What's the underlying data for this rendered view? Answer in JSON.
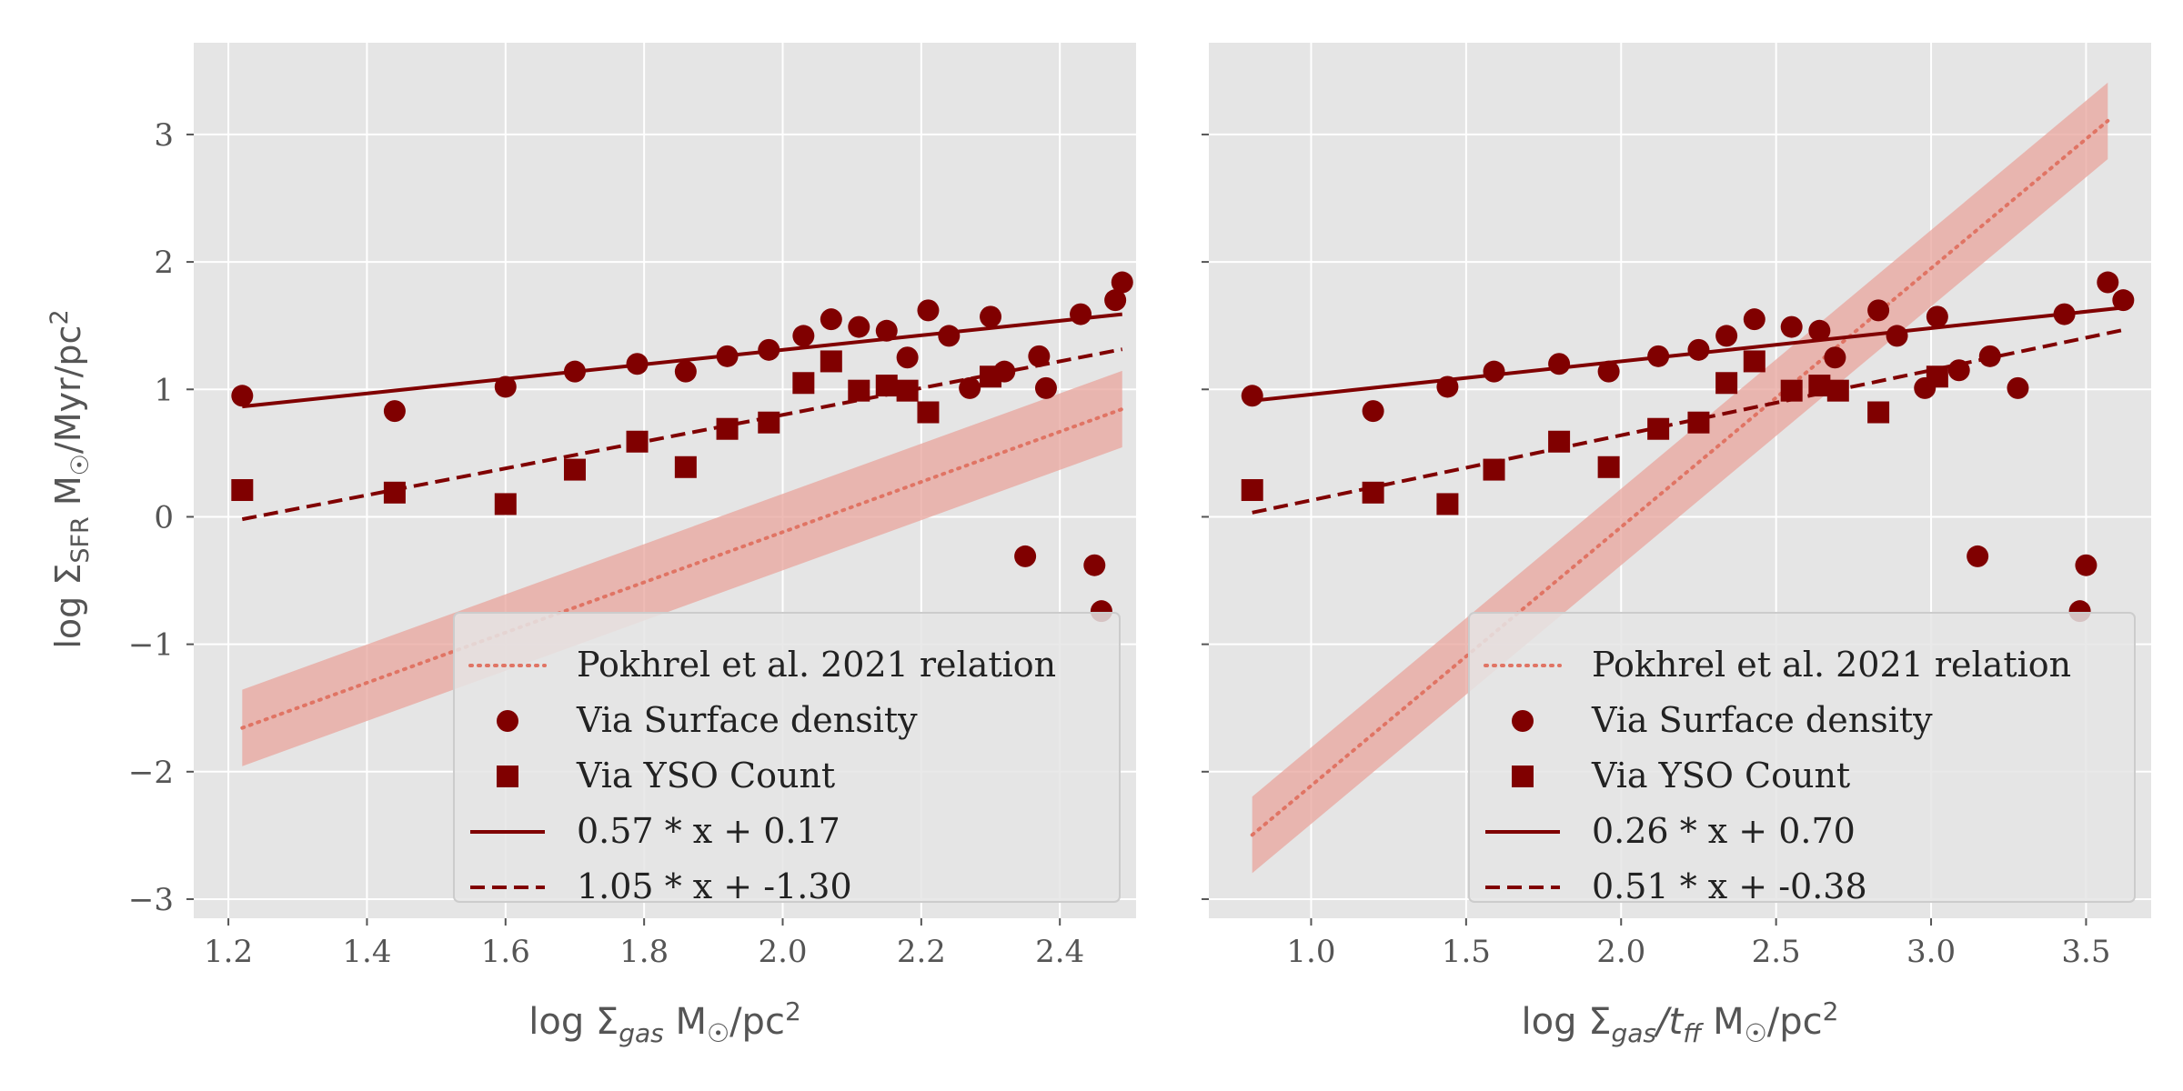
{
  "colors": {
    "panel_bg": "#e5e5e5",
    "grid": "#ffffff",
    "point": "#800000",
    "fit_line": "#800000",
    "relation_line": "#e07464",
    "relation_band": "#e8a49c",
    "tick_text": "#555555",
    "label_text": "#555555"
  },
  "figure": {
    "shared_ylabel": {
      "prefix": "log Σ",
      "sub": "SFR",
      "unit": " M",
      "sun": "☉",
      "rest": "/Myr/pc",
      "sup": "2"
    }
  },
  "chart_data": [
    {
      "type": "scatter",
      "xlim": [
        1.15,
        2.51
      ],
      "ylim": [
        -3.15,
        3.72
      ],
      "xticks": [
        1.2,
        1.4,
        1.6,
        1.8,
        2.0,
        2.2,
        2.4
      ],
      "xtick_labels": [
        "1.2",
        "1.4",
        "1.6",
        "1.8",
        "2.0",
        "2.2",
        "2.4"
      ],
      "yticks": [
        -3,
        -2,
        -1,
        0,
        1,
        2,
        3
      ],
      "ytick_labels": [
        "−3",
        "−2",
        "−1",
        "0",
        "1",
        "2",
        "3"
      ],
      "xlabel": {
        "prefix": "log Σ",
        "sub": "gas",
        "unit": " M",
        "sun": "☉",
        "rest": "/pc",
        "sup": "2"
      },
      "grid": true,
      "legend": {
        "placement": "lower-right",
        "entries": [
          {
            "label": "Pokhrel et al. 2021 relation",
            "marker": "dotted"
          },
          {
            "label": "Via Surface density",
            "marker": "circle"
          },
          {
            "label": "Via YSO Count",
            "marker": "square"
          },
          {
            "label": "0.57 * x + 0.17",
            "marker": "solid"
          },
          {
            "label": "1.05 * x + -1.30",
            "marker": "dashed"
          }
        ]
      },
      "series": [
        {
          "name": "Via Surface density",
          "marker": "circle",
          "x": [
            1.22,
            1.44,
            1.6,
            1.7,
            1.79,
            1.86,
            1.92,
            1.98,
            2.03,
            2.07,
            2.11,
            2.15,
            2.18,
            2.21,
            2.24,
            2.27,
            2.3,
            2.32,
            2.35,
            2.37,
            2.38,
            2.43,
            2.45,
            2.46,
            2.48,
            2.49
          ],
          "y": [
            0.95,
            0.83,
            1.02,
            1.14,
            1.2,
            1.14,
            1.26,
            1.31,
            1.42,
            1.55,
            1.49,
            1.46,
            1.25,
            1.62,
            1.42,
            1.01,
            1.57,
            1.14,
            -0.31,
            1.26,
            1.01,
            1.59,
            -0.38,
            -0.74,
            1.7,
            1.84
          ]
        },
        {
          "name": "Via YSO Count",
          "marker": "square",
          "x": [
            1.22,
            1.44,
            1.6,
            1.7,
            1.79,
            1.86,
            1.92,
            1.98,
            2.03,
            2.07,
            2.11,
            2.15,
            2.18,
            2.21,
            2.3
          ],
          "y": [
            0.21,
            0.19,
            0.1,
            0.37,
            0.59,
            0.39,
            0.69,
            0.74,
            1.05,
            1.22,
            0.99,
            1.03,
            0.99,
            0.82,
            1.1
          ]
        }
      ],
      "lines": [
        {
          "name": "0.57 * x + 0.17",
          "style": "solid",
          "slope": 0.57,
          "intercept": 0.17,
          "x_range": [
            1.22,
            2.49
          ]
        },
        {
          "name": "1.05 * x + -1.30",
          "style": "dashed",
          "slope": 1.05,
          "intercept": -1.3,
          "x_range": [
            1.22,
            2.49
          ]
        }
      ],
      "relation": {
        "name": "Pokhrel et al. 2021 relation",
        "style": "dotted",
        "slope": 1.97,
        "intercept": -4.06,
        "band_halfwidth": 0.3,
        "x_range": [
          1.22,
          2.49
        ]
      }
    },
    {
      "type": "scatter",
      "xlim": [
        0.67,
        3.71
      ],
      "ylim": [
        -3.15,
        3.72
      ],
      "xticks": [
        1.0,
        1.5,
        2.0,
        2.5,
        3.0,
        3.5
      ],
      "xtick_labels": [
        "1.0",
        "1.5",
        "2.0",
        "2.5",
        "3.0",
        "3.5"
      ],
      "yticks": [
        -3,
        -2,
        -1,
        0,
        1,
        2,
        3
      ],
      "ytick_labels": [],
      "xlabel": {
        "prefix": "log Σ",
        "sub": "gas",
        "mid": "/t",
        "sub2": "ff",
        "unit": " M",
        "sun": "☉",
        "rest": "/pc",
        "sup": "2"
      },
      "grid": true,
      "legend": {
        "placement": "lower-right",
        "entries": [
          {
            "label": "Pokhrel et al. 2021 relation",
            "marker": "dotted"
          },
          {
            "label": "Via Surface density",
            "marker": "circle"
          },
          {
            "label": "Via YSO Count",
            "marker": "square"
          },
          {
            "label": "0.26 * x + 0.70",
            "marker": "solid"
          },
          {
            "label": "0.51 * x + -0.38",
            "marker": "dashed"
          }
        ]
      },
      "series": [
        {
          "name": "Via Surface density",
          "marker": "circle",
          "x": [
            0.81,
            1.2,
            1.44,
            1.59,
            1.8,
            1.96,
            2.12,
            2.25,
            2.34,
            2.43,
            2.55,
            2.64,
            2.69,
            2.83,
            2.89,
            2.98,
            3.02,
            3.09,
            3.15,
            3.19,
            3.28,
            3.43,
            3.48,
            3.5,
            3.57,
            3.62
          ],
          "y": [
            0.95,
            0.83,
            1.02,
            1.14,
            1.2,
            1.14,
            1.26,
            1.31,
            1.42,
            1.55,
            1.49,
            1.46,
            1.25,
            1.62,
            1.42,
            1.01,
            1.57,
            1.15,
            -0.31,
            1.26,
            1.01,
            1.59,
            -0.74,
            -0.38,
            1.84,
            1.7
          ]
        },
        {
          "name": "Via YSO Count",
          "marker": "square",
          "x": [
            0.81,
            1.2,
            1.44,
            1.59,
            1.8,
            1.96,
            2.12,
            2.25,
            2.34,
            2.43,
            2.55,
            2.64,
            2.7,
            2.83,
            3.02
          ],
          "y": [
            0.21,
            0.19,
            0.1,
            0.37,
            0.59,
            0.39,
            0.69,
            0.74,
            1.05,
            1.22,
            0.99,
            1.03,
            0.99,
            0.82,
            1.1
          ]
        }
      ],
      "lines": [
        {
          "name": "0.26 * x + 0.70",
          "style": "solid",
          "slope": 0.26,
          "intercept": 0.7,
          "x_range": [
            0.81,
            3.62
          ]
        },
        {
          "name": "0.51 * x + -0.38",
          "style": "dashed",
          "slope": 0.51,
          "intercept": -0.38,
          "x_range": [
            0.81,
            3.62
          ]
        }
      ],
      "relation": {
        "name": "Pokhrel et al. 2021 relation",
        "style": "dotted",
        "slope": 2.03,
        "intercept": -4.14,
        "band_halfwidth": 0.3,
        "x_range": [
          0.81,
          3.57
        ]
      }
    }
  ]
}
